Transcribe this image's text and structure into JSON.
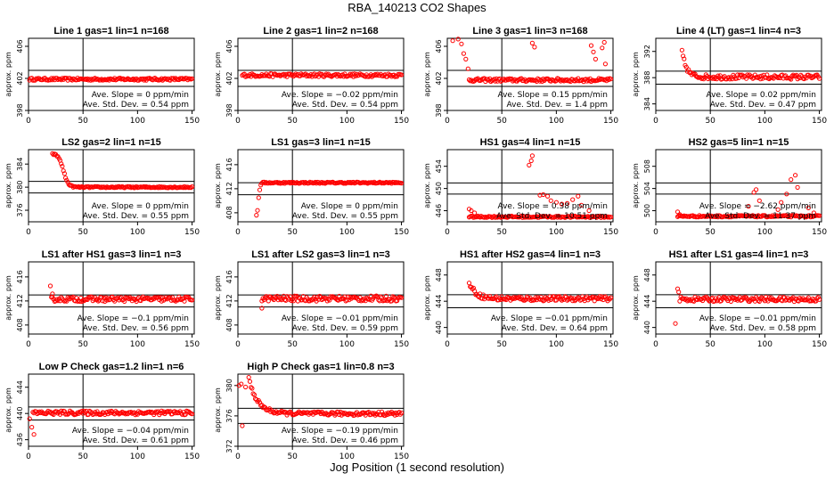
{
  "figure": {
    "title": "RBA_140213  CO2 Shapes",
    "xlabel": "Jog Position (1 second resolution)"
  },
  "chart_data": [
    {
      "type": "scatter",
      "title": "Line 1 gas=1 lin=1 n=168",
      "ylabel": "approx. ppm",
      "xlim": [
        0,
        152
      ],
      "ylim": [
        398,
        407
      ],
      "xticks": [
        0,
        50,
        100,
        150
      ],
      "yticks": [
        398,
        402,
        406
      ],
      "hlines": [
        403,
        401
      ],
      "vline": 50,
      "slope": "Ave. Slope = 0  ppm/min",
      "std": "Ave. Std. Dev. = 0.54  ppm",
      "shape": "flat",
      "start": 1,
      "base": 401.9,
      "noise": 0.15,
      "extra": []
    },
    {
      "type": "scatter",
      "title": "Line 2 gas=1 lin=2 n=168",
      "ylabel": "approx. ppm",
      "xlim": [
        0,
        152
      ],
      "ylim": [
        398,
        407
      ],
      "xticks": [
        0,
        50,
        100,
        150
      ],
      "yticks": [
        398,
        402,
        406
      ],
      "hlines": [
        403,
        401
      ],
      "vline": 50,
      "slope": "Ave. Slope = −0.02  ppm/min",
      "std": "Ave. Std. Dev. = 0.54  ppm",
      "shape": "flat",
      "start": 4,
      "base": 402.4,
      "noise": 0.2,
      "extra": []
    },
    {
      "type": "scatter",
      "title": "Line 3 gas=1 lin=3 n=168",
      "ylabel": "approx. ppm",
      "xlim": [
        0,
        152
      ],
      "ylim": [
        398,
        407
      ],
      "xticks": [
        0,
        50,
        100,
        150
      ],
      "yticks": [
        398,
        402,
        406
      ],
      "hlines": [
        403,
        401
      ],
      "vline": 50,
      "slope": "Ave. Slope = 0.15  ppm/min",
      "std": "Ave. Std. Dev. = 1.4  ppm",
      "shape": "flat",
      "start": 20,
      "base": 401.8,
      "noise": 0.2,
      "extra": [
        [
          0,
          407.5
        ],
        [
          2,
          407.4
        ],
        [
          5,
          406.7
        ],
        [
          7,
          407.6
        ],
        [
          10,
          406.9
        ],
        [
          13,
          406.3
        ],
        [
          15,
          405.1
        ],
        [
          17,
          404.4
        ],
        [
          19,
          403.2
        ],
        [
          78,
          406.4
        ],
        [
          80,
          405.9
        ],
        [
          132,
          406.1
        ],
        [
          134,
          405.3
        ],
        [
          136,
          404.4
        ],
        [
          142,
          405.8
        ],
        [
          144,
          406.5
        ],
        [
          145,
          403.8
        ]
      ]
    },
    {
      "type": "scatter",
      "title": "Line 4 (LT) gas=1 lin=4 n=3",
      "ylabel": "approx. ppm",
      "xlim": [
        0,
        152
      ],
      "ylim": [
        383,
        394
      ],
      "xticks": [
        0,
        50,
        100,
        150
      ],
      "yticks": [
        384,
        388,
        392
      ],
      "hlines": [
        389,
        387
      ],
      "vline": 50,
      "slope": "Ave. Slope = 0.02  ppm/min",
      "std": "Ave. Std. Dev. = 0.47  ppm",
      "shape": "decay",
      "start": 24,
      "base": 388.1,
      "amp": 4,
      "tau": 4,
      "noise": 0.35,
      "extra": []
    },
    {
      "type": "scatter",
      "title": "LS2 gas=2 lin=1 n=15",
      "ylabel": "approx. ppm",
      "xlim": [
        0,
        152
      ],
      "ylim": [
        374,
        386.5
      ],
      "xticks": [
        0,
        50,
        100,
        150
      ],
      "yticks": [
        376,
        380,
        384
      ],
      "hlines": [
        381,
        379
      ],
      "vline": 50,
      "slope": "Ave. Slope = 0  ppm/min",
      "std": "Ave. Std. Dev. = 0.55  ppm",
      "shape": "sigmoid",
      "start": 22,
      "base": 380,
      "amp": 5.8,
      "mid": 32,
      "width": 2.2,
      "noise": 0.12,
      "extra": []
    },
    {
      "type": "scatter",
      "title": "LS1 gas=3 lin=1 n=15",
      "ylabel": "approx. ppm",
      "xlim": [
        0,
        152
      ],
      "ylim": [
        406.5,
        418.5
      ],
      "xticks": [
        0,
        50,
        100,
        150
      ],
      "yticks": [
        408,
        412,
        416
      ],
      "hlines": [
        413,
        411
      ],
      "vline": 50,
      "slope": "Ave. Slope = 0  ppm/min",
      "std": "Ave. Std. Dev. = 0.55  ppm",
      "shape": "flat",
      "start": 22,
      "base": 413,
      "noise": 0.12,
      "extra": [
        [
          17,
          407.6
        ],
        [
          18,
          408.4
        ],
        [
          19,
          410.5
        ],
        [
          20,
          411.8
        ],
        [
          21,
          412.6
        ]
      ]
    },
    {
      "type": "scatter",
      "title": "HS1 gas=4 lin=1 n=15",
      "ylabel": "approx. ppm",
      "xlim": [
        0,
        152
      ],
      "ylim": [
        444,
        457
      ],
      "xticks": [
        0,
        50,
        100,
        150
      ],
      "yticks": [
        446,
        450,
        454
      ],
      "hlines": [
        451,
        449
      ],
      "vline": 50,
      "slope": "Ave. Slope = 0.38  ppm/min",
      "std": "Ave. Std. Dev. = 10.51  ppm",
      "shape": "flat",
      "start": 20,
      "base": 444.9,
      "noise": 0.15,
      "extra": [
        [
          20,
          446.3
        ],
        [
          22,
          446.0
        ],
        [
          25,
          445.6
        ],
        [
          75,
          454.2
        ],
        [
          77,
          455.0
        ],
        [
          78,
          455.9
        ],
        [
          85,
          448.8
        ],
        [
          88,
          448.9
        ],
        [
          92,
          448.6
        ],
        [
          95,
          447.8
        ],
        [
          100,
          447.5
        ],
        [
          105,
          447.2
        ],
        [
          110,
          447.3
        ],
        [
          115,
          448.0
        ],
        [
          120,
          448.6
        ],
        [
          123,
          447.0
        ],
        [
          130,
          446.0
        ]
      ]
    },
    {
      "type": "scatter",
      "title": "HS2 gas=5 lin=1 n=15",
      "ylabel": "approx. ppm",
      "xlim": [
        0,
        152
      ],
      "ylim": [
        498,
        511
      ],
      "xticks": [
        0,
        50,
        100,
        150
      ],
      "yticks": [
        500,
        504,
        508
      ],
      "hlines": [
        505,
        503
      ],
      "vline": 50,
      "slope": "Ave. Slope = −2.62  ppm/min",
      "std": "Ave. Std. Dev. = 11.37  ppm",
      "shape": "flat",
      "start": 20,
      "base": 499,
      "noise": 0.15,
      "extra": [
        [
          20,
          499.8
        ],
        [
          22,
          499.3
        ],
        [
          85,
          500.8
        ],
        [
          90,
          503.3
        ],
        [
          92,
          503.8
        ],
        [
          95,
          501.8
        ],
        [
          112,
          500.2
        ],
        [
          115,
          501.5
        ],
        [
          120,
          503.0
        ],
        [
          124,
          505.6
        ],
        [
          128,
          506.4
        ],
        [
          130,
          504.2
        ],
        [
          140,
          500.5
        ],
        [
          145,
          499.6
        ]
      ]
    },
    {
      "type": "scatter",
      "title": "LS1 after HS1 gas=3 lin=1 n=3",
      "ylabel": "approx. ppm",
      "xlim": [
        0,
        152
      ],
      "ylim": [
        406.5,
        418.5
      ],
      "xticks": [
        0,
        50,
        100,
        150
      ],
      "yticks": [
        408,
        412,
        416
      ],
      "hlines": [
        413,
        411
      ],
      "vline": 50,
      "slope": "Ave. Slope = −0.1  ppm/min",
      "std": "Ave. Std. Dev. = 0.56  ppm",
      "shape": "flat",
      "start": 21,
      "base": 412.3,
      "noise": 0.4,
      "extra": [
        [
          20,
          414.5
        ],
        [
          22,
          413.2
        ]
      ]
    },
    {
      "type": "scatter",
      "title": "LS1 after LS2 gas=3 lin=1 n=3",
      "ylabel": "approx. ppm",
      "xlim": [
        0,
        152
      ],
      "ylim": [
        406.5,
        418.5
      ],
      "xticks": [
        0,
        50,
        100,
        150
      ],
      "yticks": [
        408,
        412,
        416
      ],
      "hlines": [
        413,
        411
      ],
      "vline": 50,
      "slope": "Ave. Slope = −0.01  ppm/min",
      "std": "Ave. Std. Dev. = 0.59  ppm",
      "shape": "flat",
      "start": 22,
      "base": 412.4,
      "noise": 0.45,
      "extra": [
        [
          22,
          410.8
        ]
      ]
    },
    {
      "type": "scatter",
      "title": "HS1 after HS2 gas=4 lin=1 n=3",
      "ylabel": "approx. ppm",
      "xlim": [
        0,
        152
      ],
      "ylim": [
        439,
        450
      ],
      "xticks": [
        0,
        50,
        100,
        150
      ],
      "yticks": [
        440,
        444,
        448
      ],
      "hlines": [
        445,
        443
      ],
      "vline": 50,
      "slope": "Ave. Slope = −0.01  ppm/min",
      "std": "Ave. Std. Dev. = 0.64  ppm",
      "shape": "decay",
      "start": 20,
      "base": 444.4,
      "amp": 2.5,
      "tau": 6,
      "noise": 0.35,
      "extra": []
    },
    {
      "type": "scatter",
      "title": "HS1 after LS1 gas=4 lin=1 n=3",
      "ylabel": "approx. ppm",
      "xlim": [
        0,
        152
      ],
      "ylim": [
        439,
        450
      ],
      "xticks": [
        0,
        50,
        100,
        150
      ],
      "yticks": [
        440,
        444,
        448
      ],
      "hlines": [
        445,
        443
      ],
      "vline": 50,
      "slope": "Ave. Slope = −0.01  ppm/min",
      "std": "Ave. Std. Dev. = 0.58  ppm",
      "shape": "flat",
      "start": 22,
      "base": 444.3,
      "noise": 0.35,
      "extra": [
        [
          18,
          440.6
        ],
        [
          20,
          445.9
        ],
        [
          21,
          445.4
        ]
      ]
    },
    {
      "type": "scatter",
      "title": "Low P Check gas=1.2 lin=1 n=6",
      "ylabel": "approx. ppm",
      "xlim": [
        0,
        152
      ],
      "ylim": [
        435,
        446
      ],
      "xticks": [
        0,
        50,
        100,
        150
      ],
      "yticks": [
        436,
        440,
        444
      ],
      "hlines": [
        441,
        439
      ],
      "vline": 50,
      "slope": "Ave. Slope = −0.04  ppm/min",
      "std": "Ave. Std. Dev. = 0.61  ppm",
      "shape": "flat",
      "start": 4,
      "base": 440.1,
      "noise": 0.3,
      "extra": [
        [
          1,
          439.2
        ],
        [
          3,
          437.9
        ],
        [
          5,
          436.8
        ]
      ]
    },
    {
      "type": "scatter",
      "title": "High P Check gas=1 lin=0.8 n=3",
      "ylabel": "approx. ppm",
      "xlim": [
        0,
        152
      ],
      "ylim": [
        372,
        381.5
      ],
      "xticks": [
        0,
        50,
        100,
        150
      ],
      "yticks": [
        372,
        376,
        380
      ],
      "hlines": [
        377,
        375
      ],
      "vline": 50,
      "slope": "Ave. Slope = −0.19  ppm/min",
      "std": "Ave. Std. Dev. = 0.46  ppm",
      "shape": "decay",
      "start": 10,
      "base": 376.3,
      "amp": 4.6,
      "tau": 8,
      "noise": 0.25,
      "extra": [
        [
          1,
          380.0
        ],
        [
          3,
          380.2
        ],
        [
          4,
          374.7
        ],
        [
          7,
          379.8
        ]
      ]
    }
  ]
}
